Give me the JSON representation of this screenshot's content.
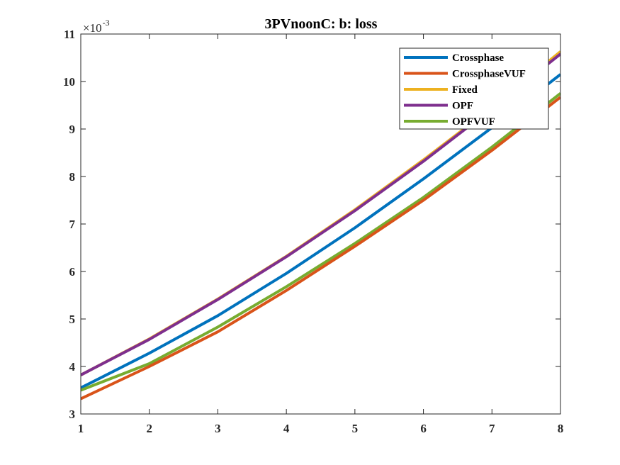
{
  "chart_data": {
    "type": "line",
    "title": "3PVnoonC: b: loss",
    "xlabel": "",
    "ylabel": "",
    "x": [
      1,
      2,
      3,
      4,
      5,
      6,
      7,
      8
    ],
    "xlim": [
      1,
      8
    ],
    "ylim": [
      3,
      11
    ],
    "xticks": [
      "1",
      "2",
      "3",
      "4",
      "5",
      "6",
      "7",
      "8"
    ],
    "yticks": [
      "3",
      "4",
      "5",
      "6",
      "7",
      "8",
      "9",
      "10",
      "11"
    ],
    "y_exponent": {
      "base": "×10",
      "power": "-3"
    },
    "grid": false,
    "legend_position": "top-right",
    "series": [
      {
        "name": "Fixed",
        "color": "#EDB120",
        "values": [
          3.82,
          4.58,
          5.42,
          6.32,
          7.3,
          8.35,
          9.45,
          10.63
        ]
      },
      {
        "name": "OPF",
        "color": "#7E2F8E",
        "values": [
          3.82,
          4.57,
          5.41,
          6.31,
          7.28,
          8.32,
          9.43,
          10.58
        ]
      },
      {
        "name": "Crossphase",
        "color": "#0072BD",
        "values": [
          3.55,
          4.28,
          5.07,
          5.96,
          6.92,
          7.95,
          9.03,
          10.15
        ]
      },
      {
        "name": "OPFVUF",
        "color": "#77AC30",
        "values": [
          3.5,
          4.06,
          4.83,
          5.68,
          6.59,
          7.56,
          8.62,
          9.75
        ]
      },
      {
        "name": "CrossphaseVUF",
        "color": "#D95319",
        "values": [
          3.32,
          4.0,
          4.73,
          5.6,
          6.53,
          7.5,
          8.55,
          9.67
        ]
      }
    ],
    "legend_order": [
      "Crossphase",
      "CrossphaseVUF",
      "Fixed",
      "OPF",
      "OPFVUF"
    ]
  }
}
